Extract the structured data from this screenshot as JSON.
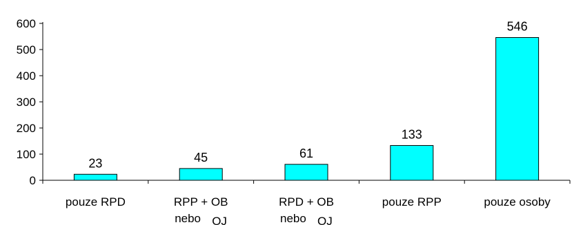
{
  "chart_data": {
    "type": "bar",
    "title": "",
    "xlabel": "",
    "ylabel": "",
    "ylim": [
      0,
      600
    ],
    "yticks": [
      0,
      100,
      200,
      300,
      400,
      500,
      600
    ],
    "grid": false,
    "categories": [
      {
        "lines": [
          "pouze RPD"
        ]
      },
      {
        "lines": [
          "RPP + OB",
          "nebo",
          "OJ"
        ]
      },
      {
        "lines": [
          "RPD + OB",
          "nebo",
          "OJ"
        ]
      },
      {
        "lines": [
          "pouze RPP"
        ]
      },
      {
        "lines": [
          "pouze osoby"
        ]
      }
    ],
    "values": [
      23,
      45,
      61,
      133,
      546
    ],
    "bar_color": "#00ffff",
    "bar_edge_color": "#000000"
  }
}
